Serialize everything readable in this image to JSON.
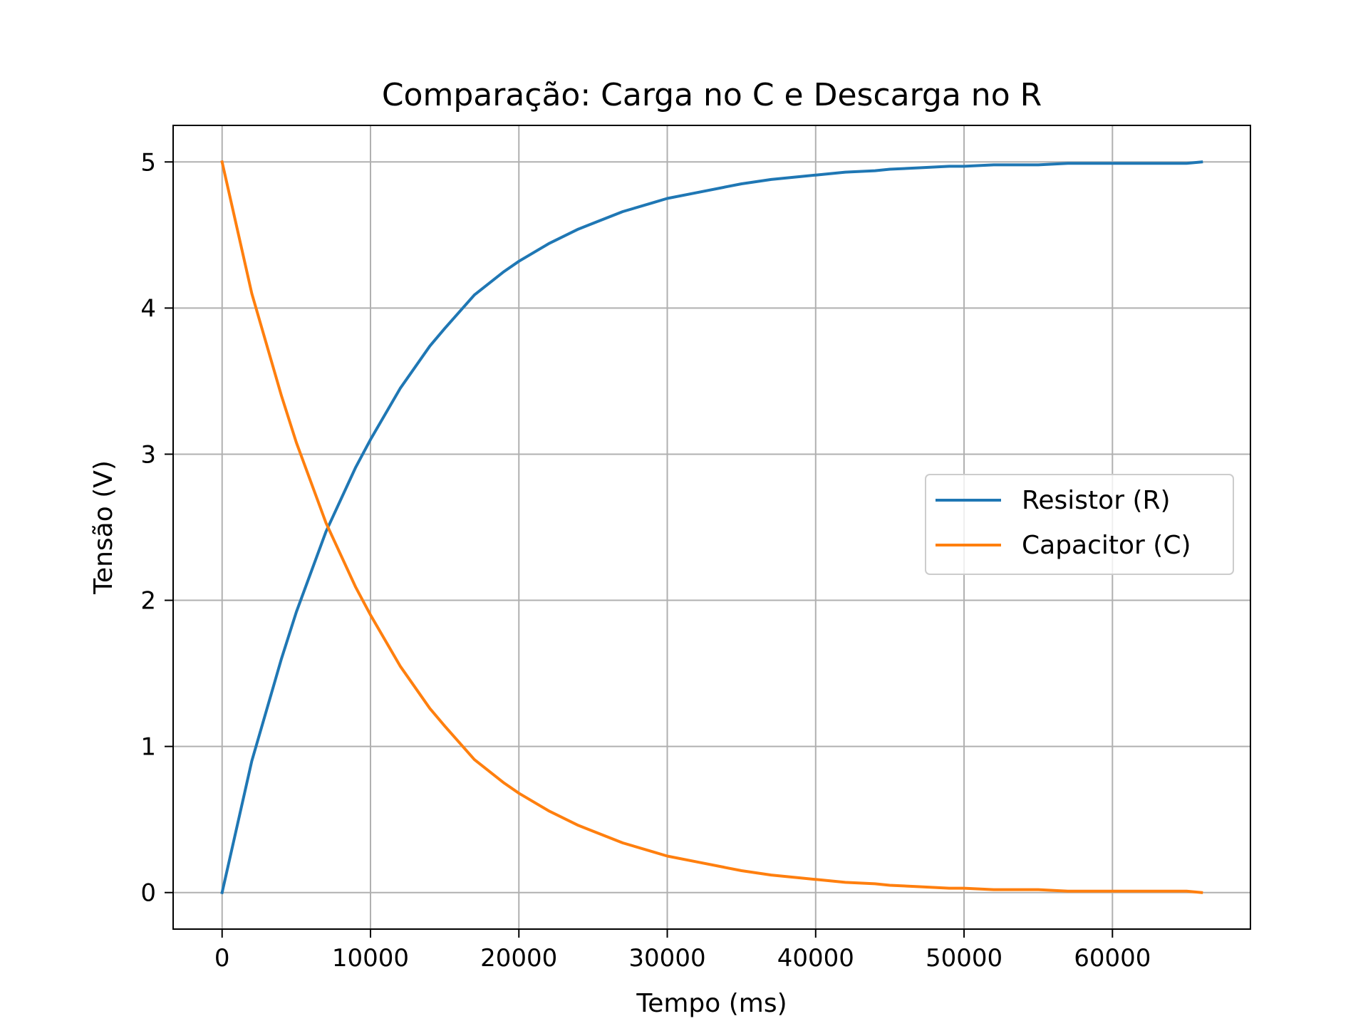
{
  "chart_data": {
    "type": "line",
    "title": "Comparação: Carga no C e Descarga no R",
    "xlabel": "Tempo (ms)",
    "ylabel": "Tensão (V)",
    "xlim": [
      -3300,
      69300
    ],
    "ylim": [
      -0.25,
      5.25
    ],
    "xticks": [
      0,
      10000,
      20000,
      30000,
      40000,
      50000,
      60000
    ],
    "yticks": [
      0,
      1,
      2,
      3,
      4,
      5
    ],
    "grid": true,
    "legend_position": "center-right",
    "series": [
      {
        "name": "Resistor (R)",
        "color": "#1f77b4",
        "x": [
          0,
          2000,
          4000,
          5000,
          7000,
          9000,
          10000,
          12000,
          14000,
          15000,
          17000,
          19000,
          20000,
          22000,
          24000,
          25000,
          27000,
          29000,
          30000,
          32000,
          34000,
          35000,
          37000,
          39000,
          40000,
          42000,
          44000,
          45000,
          47000,
          49000,
          50000,
          52000,
          54000,
          55000,
          57000,
          60000,
          63000,
          65000,
          66000
        ],
        "y": [
          0,
          0.9,
          1.6,
          1.92,
          2.47,
          2.91,
          3.1,
          3.45,
          3.74,
          3.86,
          4.09,
          4.25,
          4.32,
          4.44,
          4.54,
          4.58,
          4.66,
          4.72,
          4.75,
          4.79,
          4.83,
          4.85,
          4.88,
          4.9,
          4.91,
          4.93,
          4.94,
          4.95,
          4.96,
          4.97,
          4.97,
          4.98,
          4.98,
          4.98,
          4.99,
          4.99,
          4.99,
          4.99,
          5.0
        ]
      },
      {
        "name": "Capacitor (C)",
        "color": "#ff7f0e",
        "x": [
          0,
          2000,
          4000,
          5000,
          7000,
          9000,
          10000,
          12000,
          14000,
          15000,
          17000,
          19000,
          20000,
          22000,
          24000,
          25000,
          27000,
          29000,
          30000,
          32000,
          34000,
          35000,
          37000,
          39000,
          40000,
          42000,
          44000,
          45000,
          47000,
          49000,
          50000,
          52000,
          54000,
          55000,
          57000,
          60000,
          63000,
          65000,
          66000
        ],
        "y": [
          5.0,
          4.1,
          3.4,
          3.08,
          2.53,
          2.09,
          1.9,
          1.55,
          1.26,
          1.14,
          0.91,
          0.75,
          0.68,
          0.56,
          0.46,
          0.42,
          0.34,
          0.28,
          0.25,
          0.21,
          0.17,
          0.15,
          0.12,
          0.1,
          0.09,
          0.07,
          0.06,
          0.05,
          0.04,
          0.03,
          0.03,
          0.02,
          0.02,
          0.02,
          0.01,
          0.01,
          0.01,
          0.01,
          0.0
        ]
      }
    ]
  }
}
